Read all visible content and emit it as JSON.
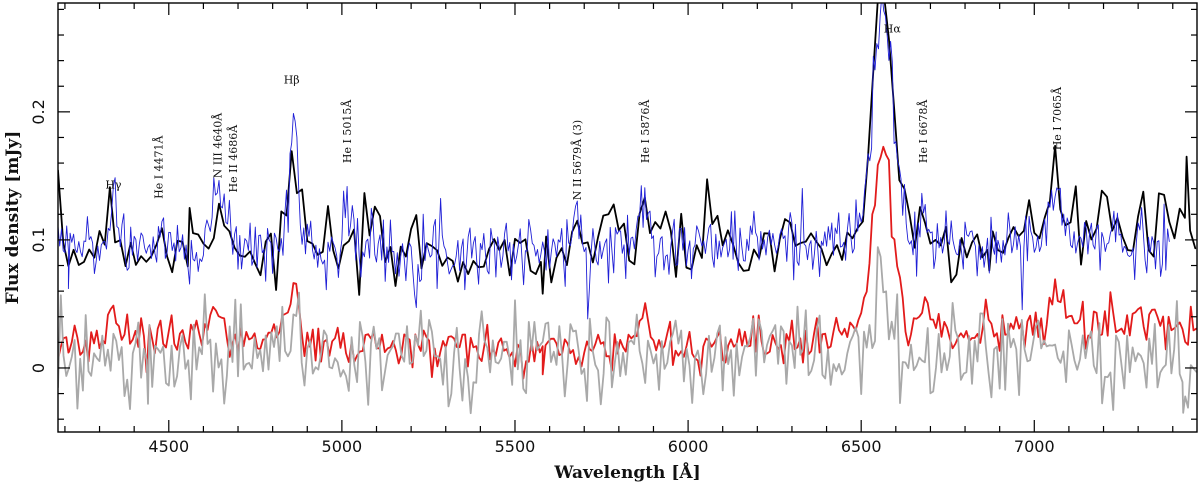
{
  "chart_data": {
    "type": "line",
    "xlabel": "Wavelength [Å]",
    "ylabel": "Flux density [mJy]",
    "xlim": [
      4180,
      7470
    ],
    "ylim": [
      -0.05,
      0.285
    ],
    "xticks": [
      4500,
      5000,
      5500,
      6000,
      6500,
      7000
    ],
    "xtick_labels": [
      "4500",
      "5000",
      "5500",
      "6000",
      "6500",
      "7000"
    ],
    "yticks": [
      0,
      0.1,
      0.2
    ],
    "ytick_labels": [
      "0",
      "0.1",
      "0.2"
    ],
    "grid": false,
    "noise_seed": 7,
    "series": [
      {
        "color": "#000000",
        "line_width": 1.8,
        "noise": 0.016,
        "step": 15,
        "x_range": [
          4180,
          7470
        ],
        "continuum": [
          [
            4180,
            0.092
          ],
          [
            4500,
            0.092
          ],
          [
            5000,
            0.09
          ],
          [
            5500,
            0.09
          ],
          [
            6000,
            0.094
          ],
          [
            6400,
            0.097
          ],
          [
            6800,
            0.097
          ],
          [
            7100,
            0.102
          ],
          [
            7470,
            0.107
          ]
        ],
        "features": [
          [
            4335,
            0.05,
            14
          ],
          [
            4471,
            0.012,
            10
          ],
          [
            4640,
            0.036,
            25
          ],
          [
            4686,
            0.014,
            10
          ],
          [
            4861,
            0.075,
            15
          ],
          [
            5015,
            0.01,
            8
          ],
          [
            5679,
            0.015,
            15
          ],
          [
            5876,
            0.038,
            22
          ],
          [
            6563,
            0.175,
            30
          ],
          [
            6678,
            0.025,
            12
          ],
          [
            7065,
            0.045,
            22
          ],
          [
            7200,
            0.02,
            30
          ]
        ],
        "points": [
          [
            4560,
            0.125
          ],
          [
            5580,
            0.058
          ],
          [
            6870,
            0.076
          ],
          [
            7440,
            0.165
          ]
        ]
      },
      {
        "color": "#1f1fd6",
        "line_width": 0.9,
        "noise": 0.013,
        "step": 5,
        "x_range": [
          4180,
          7390
        ],
        "continuum": [
          [
            4180,
            0.095
          ],
          [
            4500,
            0.095
          ],
          [
            5000,
            0.093
          ],
          [
            5500,
            0.092
          ],
          [
            6000,
            0.095
          ],
          [
            6400,
            0.1
          ],
          [
            6800,
            0.096
          ],
          [
            7100,
            0.1
          ],
          [
            7390,
            0.098
          ]
        ],
        "features": [
          [
            4340,
            0.04,
            12
          ],
          [
            4471,
            0.012,
            8
          ],
          [
            4640,
            0.04,
            20
          ],
          [
            4686,
            0.012,
            8
          ],
          [
            4861,
            0.105,
            12
          ],
          [
            5015,
            0.045,
            10
          ],
          [
            5679,
            0.017,
            12
          ],
          [
            5876,
            0.04,
            18
          ],
          [
            6563,
            0.178,
            30
          ],
          [
            6678,
            0.022,
            10
          ],
          [
            7065,
            0.035,
            18
          ]
        ],
        "points": [
          [
            4210,
            0.062
          ],
          [
            6890,
            0.082
          ]
        ]
      },
      {
        "color": "#e21b1b",
        "line_width": 1.8,
        "noise": 0.009,
        "step": 8,
        "x_range": [
          4180,
          7470
        ],
        "continuum": [
          [
            4180,
            0.018
          ],
          [
            4500,
            0.027
          ],
          [
            5000,
            0.017
          ],
          [
            5500,
            0.013
          ],
          [
            6000,
            0.017
          ],
          [
            6300,
            0.022
          ],
          [
            6500,
            0.03
          ],
          [
            6800,
            0.028
          ],
          [
            7100,
            0.033
          ],
          [
            7470,
            0.035
          ]
        ],
        "features": [
          [
            4335,
            0.018,
            14
          ],
          [
            4640,
            0.022,
            20
          ],
          [
            4861,
            0.045,
            15
          ],
          [
            5876,
            0.03,
            18
          ],
          [
            6563,
            0.135,
            30
          ],
          [
            6678,
            0.018,
            12
          ],
          [
            7065,
            0.03,
            22
          ]
        ],
        "points": [
          [
            4210,
            0.012
          ],
          [
            5580,
            -0.005
          ]
        ]
      },
      {
        "color": "#a9a9a9",
        "line_width": 1.8,
        "noise": 0.018,
        "step": 8,
        "x_range": [
          4180,
          7470
        ],
        "continuum": [
          [
            4180,
            0.01
          ],
          [
            4500,
            0.01
          ],
          [
            5000,
            0.01
          ],
          [
            5500,
            0.008
          ],
          [
            6000,
            0.008
          ],
          [
            6500,
            0.01
          ],
          [
            7000,
            0.01
          ],
          [
            7470,
            0.005
          ]
        ],
        "features": [
          [
            4335,
            0.01,
            14
          ],
          [
            4861,
            0.02,
            15
          ],
          [
            6563,
            0.075,
            25
          ]
        ],
        "points": [
          [
            4440,
            -0.028
          ],
          [
            7430,
            -0.035
          ]
        ]
      }
    ],
    "annotations": [
      {
        "text": "Hγ",
        "x": 4340,
        "y": 0.14,
        "rotated": false
      },
      {
        "text": "He I 4471Å",
        "x": 4471,
        "y": 0.132,
        "rotated": true
      },
      {
        "text": "N III 4640Å",
        "x": 4640,
        "y": 0.148,
        "rotated": true
      },
      {
        "text": "He II 4686Å",
        "x": 4686,
        "y": 0.137,
        "rotated": true
      },
      {
        "text": "Hβ",
        "x": 4855,
        "y": 0.222,
        "rotated": false
      },
      {
        "text": "He I 5015Å",
        "x": 5015,
        "y": 0.16,
        "rotated": true
      },
      {
        "text": "N II 5679Å (3)",
        "x": 5679,
        "y": 0.131,
        "rotated": true
      },
      {
        "text": "He I 5876Å",
        "x": 5876,
        "y": 0.16,
        "rotated": true
      },
      {
        "text": "Hα",
        "x": 6590,
        "y": 0.262,
        "rotated": false
      },
      {
        "text": "He I 6678Å",
        "x": 6678,
        "y": 0.16,
        "rotated": true
      },
      {
        "text": "He I 7065Å",
        "x": 7065,
        "y": 0.17,
        "rotated": true
      }
    ]
  }
}
